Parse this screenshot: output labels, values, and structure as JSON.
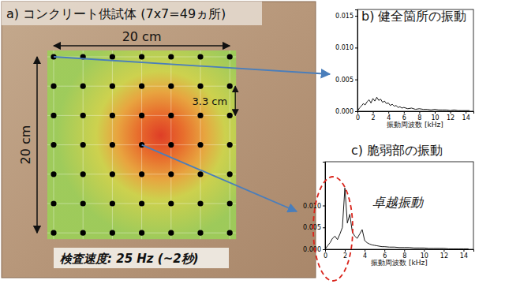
{
  "specimen": {
    "title": "a) コンクリート供試体 (7x7=49ヵ所)",
    "width_label": "20 cm",
    "height_label": "20 cm",
    "spacing_label": "3.3 cm",
    "speed_label": "検査速度: 25 Hz (~2秒)",
    "points": {
      "rows": 7,
      "columns": 7
    }
  },
  "chart_data": [
    {
      "type": "line",
      "title": "b) 健全箇所の振動",
      "x_label": "振動周波数 [kHz]",
      "color": "#000000",
      "x": [
        0,
        0.25,
        0.5,
        0.75,
        1,
        1.25,
        1.5,
        1.75,
        2,
        2.25,
        2.5,
        2.75,
        3,
        3.25,
        3.5,
        3.75,
        4,
        4.25,
        4.5,
        4.75,
        5,
        5.25,
        5.5,
        5.75,
        6,
        6.5,
        7,
        7.5,
        8,
        8.5,
        9,
        9.5,
        10,
        10.5,
        11,
        11.5,
        12,
        12.5,
        13,
        13.5,
        14,
        14.5
      ],
      "values": [
        0,
        0.0005,
        0.0008,
        0.0012,
        0.001,
        0.0015,
        0.0018,
        0.0013,
        0.002,
        0.0016,
        0.0022,
        0.0017,
        0.0019,
        0.0014,
        0.0016,
        0.0012,
        0.0013,
        0.0009,
        0.0011,
        0.0008,
        0.0009,
        0.0006,
        0.0007,
        0.0005,
        0.0006,
        0.0004,
        0.0005,
        0.0003,
        0.0004,
        0.0003,
        0.0003,
        0.0002,
        0.0003,
        0.0002,
        0.0002,
        0.0002,
        0.0001,
        0.0002,
        0.0001,
        0.0001,
        0.0001,
        0.0001
      ],
      "xlim": [
        0,
        15
      ],
      "xticks": [
        0,
        2,
        4,
        6,
        8,
        10,
        12,
        14
      ],
      "ylim": [
        0,
        0.016
      ],
      "yticks": [
        {
          "value": 0,
          "label": "0.000"
        },
        {
          "value": 0.005,
          "label": "0.005"
        },
        {
          "value": 0.01,
          "label": "0.010"
        },
        {
          "value": 0.015,
          "label": "0.015"
        }
      ]
    },
    {
      "type": "line",
      "title": "c) 脆弱部の振動",
      "x_label": "振動周波数 [kHz]",
      "color": "#000000",
      "annotation": "卓越振動",
      "x": [
        0,
        0.25,
        0.5,
        0.75,
        1,
        1.25,
        1.5,
        1.75,
        2,
        2.25,
        2.5,
        2.75,
        3,
        3.25,
        3.5,
        3.75,
        4,
        4.25,
        4.5,
        4.75,
        5,
        5.25,
        5.5,
        5.75,
        6,
        6.5,
        7,
        7.5,
        8,
        8.5,
        9,
        9.5,
        10,
        10.5,
        11,
        11.5,
        12,
        12.5,
        13,
        13.5,
        14,
        14.5
      ],
      "values": [
        0,
        0.0008,
        0.0015,
        0.0025,
        0.003,
        0.0022,
        0.0035,
        0.005,
        0.014,
        0.006,
        0.008,
        0.004,
        0.003,
        0.0025,
        0.0035,
        0.0045,
        0.002,
        0.0015,
        0.0012,
        0.001,
        0.0009,
        0.0008,
        0.0007,
        0.0006,
        0.0006,
        0.0005,
        0.0005,
        0.0004,
        0.0004,
        0.0004,
        0.0003,
        0.0003,
        0.0003,
        0.0002,
        0.0002,
        0.0002,
        0.0002,
        0.0001,
        0.0001,
        0.0001,
        0.0001,
        0.0001
      ],
      "xlim": [
        0,
        15
      ],
      "xticks": [
        0,
        2,
        4,
        6,
        8,
        10,
        12,
        14
      ],
      "ylim": [
        0,
        0.02
      ],
      "yticks": [
        {
          "value": 0,
          "label": "0.000"
        },
        {
          "value": 0.005,
          "label": "0.005"
        },
        {
          "value": 0.01,
          "label": "0.010"
        }
      ]
    }
  ]
}
